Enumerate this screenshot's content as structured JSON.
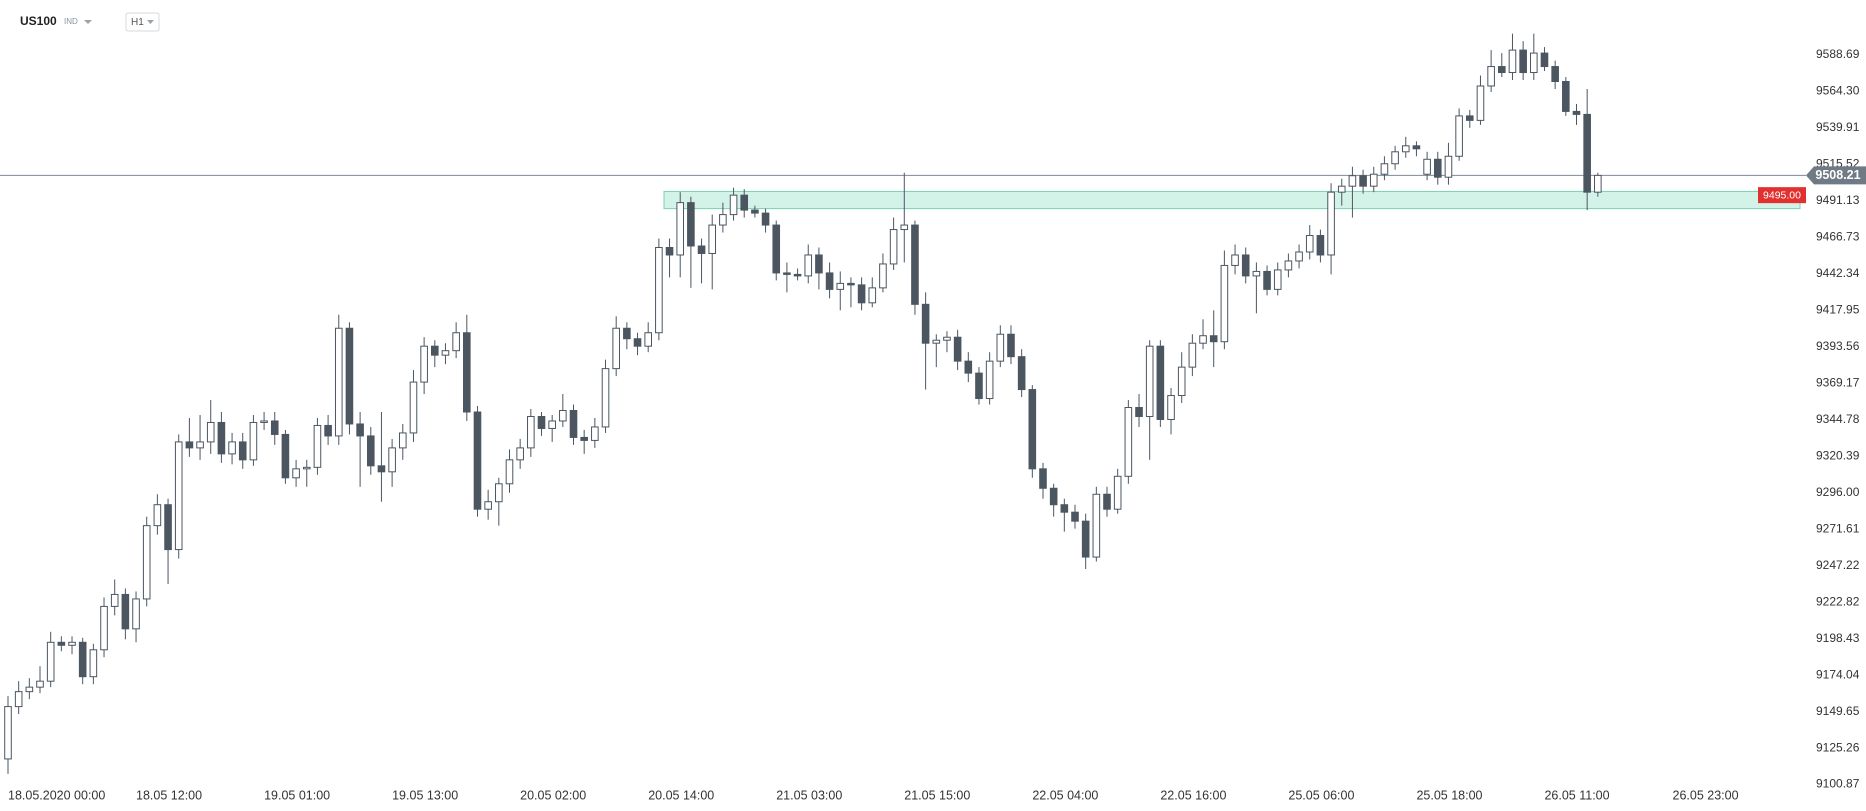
{
  "chart_data": {
    "type": "candlestick",
    "title": "US100",
    "subtitle": "IND",
    "timeframe": "H1",
    "up_color": "#ffffff",
    "down_color": "#4b5661",
    "outline_color": "#4b5661",
    "ylim": [
      9097.9,
      9625.5
    ],
    "yticks": [
      9100.87,
      9125.26,
      9149.65,
      9174.04,
      9198.43,
      9222.82,
      9247.22,
      9271.61,
      {
        "value": 9296,
        "label": "9296.00"
      },
      9320.39,
      9344.78,
      9369.17,
      9393.56,
      9417.95,
      9442.34,
      9466.73,
      9491.13,
      9515.52,
      9539.91,
      {
        "value": 9564.3,
        "label": "9564.30"
      },
      9588.69
    ],
    "current_price": 9508.21,
    "zone": {
      "low": 9486,
      "high": 9497.5
    },
    "zone_label": {
      "value": 9495,
      "label": "9495.00"
    },
    "categories": [
      "18.05.2020 00:00",
      null,
      null,
      null,
      null,
      null,
      null,
      null,
      null,
      null,
      null,
      null,
      "18.05 12:00",
      null,
      null,
      null,
      null,
      null,
      null,
      null,
      null,
      null,
      null,
      null,
      "19.05 01:00",
      null,
      null,
      null,
      null,
      null,
      null,
      null,
      null,
      null,
      null,
      null,
      "19.05 13:00",
      null,
      null,
      null,
      null,
      null,
      null,
      null,
      null,
      null,
      null,
      null,
      "20.05 02:00",
      null,
      null,
      null,
      null,
      null,
      null,
      null,
      null,
      null,
      null,
      null,
      "20.05 14:00",
      null,
      null,
      null,
      null,
      null,
      null,
      null,
      null,
      null,
      null,
      null,
      "21.05 03:00",
      null,
      null,
      null,
      null,
      null,
      null,
      null,
      null,
      null,
      null,
      null,
      "21.05 15:00",
      null,
      null,
      null,
      null,
      null,
      null,
      null,
      null,
      null,
      null,
      null,
      "22.05 04:00",
      null,
      null,
      null,
      null,
      null,
      null,
      null,
      null,
      null,
      null,
      null,
      "22.05 16:00",
      null,
      null,
      null,
      null,
      null,
      null,
      null,
      null,
      null,
      null,
      null,
      "25.05 06:00",
      null,
      null,
      null,
      null,
      null,
      null,
      null,
      null,
      null,
      null,
      null,
      "25.05 18:00",
      null,
      null,
      null,
      null,
      null,
      null,
      null,
      null,
      null,
      null,
      null,
      "26.05 11:00",
      null,
      null,
      null,
      null,
      null,
      null,
      null,
      null,
      null,
      null,
      null,
      "26.05 23:00"
    ],
    "ohlc": [
      [
        9118,
        9160,
        9108,
        9153
      ],
      [
        9153,
        9170,
        9148,
        9163
      ],
      [
        9163,
        9172,
        9158,
        9166
      ],
      [
        9166,
        9180,
        9162,
        9170
      ],
      [
        9170,
        9203,
        9166,
        9196
      ],
      [
        9196,
        9200,
        9190,
        9194
      ],
      [
        9194,
        9200,
        9188,
        9196
      ],
      [
        9196,
        9199,
        9168,
        9173
      ],
      [
        9173,
        9195,
        9168,
        9191
      ],
      [
        9191,
        9226,
        9186,
        9220
      ],
      [
        9220,
        9238,
        9214,
        9228
      ],
      [
        9228,
        9232,
        9198,
        9205
      ],
      [
        9205,
        9230,
        9196,
        9225
      ],
      [
        9225,
        9280,
        9220,
        9274
      ],
      [
        9274,
        9295,
        9268,
        9288
      ],
      [
        9288,
        9292,
        9235,
        9258
      ],
      [
        9258,
        9335,
        9252,
        9330
      ],
      [
        9330,
        9346,
        9320,
        9326
      ],
      [
        9326,
        9348,
        9318,
        9330
      ],
      [
        9330,
        9358,
        9322,
        9343
      ],
      [
        9343,
        9350,
        9316,
        9322
      ],
      [
        9322,
        9336,
        9315,
        9330
      ],
      [
        9330,
        9336,
        9312,
        9318
      ],
      [
        9318,
        9348,
        9314,
        9343
      ],
      [
        9343,
        9350,
        9338,
        9344
      ],
      [
        9344,
        9350,
        9328,
        9335
      ],
      [
        9335,
        9338,
        9302,
        9306
      ],
      [
        9306,
        9318,
        9300,
        9312
      ],
      [
        9312,
        9318,
        9300,
        9313
      ],
      [
        9313,
        9346,
        9308,
        9341
      ],
      [
        9341,
        9348,
        9328,
        9334
      ],
      [
        9334,
        9415,
        9328,
        9406
      ],
      [
        9406,
        9410,
        9335,
        9342
      ],
      [
        9342,
        9350,
        9300,
        9334
      ],
      [
        9334,
        9340,
        9308,
        9314
      ],
      [
        9314,
        9350,
        9290,
        9310
      ],
      [
        9310,
        9332,
        9300,
        9326
      ],
      [
        9326,
        9342,
        9318,
        9336
      ],
      [
        9336,
        9378,
        9330,
        9370
      ],
      [
        9370,
        9400,
        9362,
        9394
      ],
      [
        9394,
        9398,
        9380,
        9388
      ],
      [
        9388,
        9396,
        9382,
        9391
      ],
      [
        9391,
        9410,
        9386,
        9403
      ],
      [
        9403,
        9415,
        9344,
        9350
      ],
      [
        9350,
        9354,
        9280,
        9285
      ],
      [
        9285,
        9298,
        9278,
        9290
      ],
      [
        9290,
        9306,
        9274,
        9302
      ],
      [
        9302,
        9325,
        9296,
        9318
      ],
      [
        9318,
        9332,
        9312,
        9326
      ],
      [
        9326,
        9352,
        9320,
        9347
      ],
      [
        9347,
        9350,
        9334,
        9339
      ],
      [
        9339,
        9348,
        9330,
        9344
      ],
      [
        9344,
        9362,
        9340,
        9351
      ],
      [
        9351,
        9355,
        9328,
        9333
      ],
      [
        9333,
        9338,
        9322,
        9331
      ],
      [
        9331,
        9346,
        9326,
        9340
      ],
      [
        9340,
        9385,
        9336,
        9379
      ],
      [
        9379,
        9414,
        9374,
        9406
      ],
      [
        9406,
        9410,
        9392,
        9399
      ],
      [
        9399,
        9403,
        9388,
        9394
      ],
      [
        9394,
        9410,
        9390,
        9403
      ],
      [
        9403,
        9466,
        9398,
        9460
      ],
      [
        9460,
        9466,
        9440,
        9455
      ],
      [
        9455,
        9497,
        9440,
        9490
      ],
      [
        9490,
        9494,
        9433,
        9461
      ],
      [
        9461,
        9466,
        9436,
        9456
      ],
      [
        9456,
        9482,
        9432,
        9475
      ],
      [
        9475,
        9490,
        9470,
        9482
      ],
      [
        9482,
        9500,
        9478,
        9495
      ],
      [
        9495,
        9499,
        9480,
        9485
      ],
      [
        9485,
        9488,
        9480,
        9483
      ],
      [
        9483,
        9486,
        9470,
        9475
      ],
      [
        9475,
        9478,
        9438,
        9443
      ],
      [
        9443,
        9450,
        9430,
        9442
      ],
      [
        9442,
        9446,
        9438,
        9441
      ],
      [
        9441,
        9462,
        9436,
        9455
      ],
      [
        9455,
        9460,
        9432,
        9443
      ],
      [
        9443,
        9450,
        9426,
        9432
      ],
      [
        9432,
        9444,
        9418,
        9436
      ],
      [
        9436,
        9440,
        9420,
        9435
      ],
      [
        9435,
        9440,
        9418,
        9423
      ],
      [
        9423,
        9440,
        9420,
        9433
      ],
      [
        9433,
        9456,
        9430,
        9449
      ],
      [
        9449,
        9480,
        9445,
        9472
      ],
      [
        9472,
        9510,
        9450,
        9475
      ],
      [
        9475,
        9478,
        9415,
        9422
      ],
      [
        9422,
        9430,
        9365,
        9396
      ],
      [
        9396,
        9402,
        9380,
        9398
      ],
      [
        9398,
        9404,
        9390,
        9400
      ],
      [
        9400,
        9405,
        9378,
        9384
      ],
      [
        9384,
        9390,
        9370,
        9376
      ],
      [
        9376,
        9380,
        9355,
        9359
      ],
      [
        9359,
        9390,
        9355,
        9384
      ],
      [
        9384,
        9408,
        9380,
        9402
      ],
      [
        9402,
        9408,
        9382,
        9387
      ],
      [
        9387,
        9392,
        9360,
        9365
      ],
      [
        9365,
        9368,
        9306,
        9312
      ],
      [
        9312,
        9316,
        9292,
        9299
      ],
      [
        9299,
        9302,
        9280,
        9288
      ],
      [
        9288,
        9292,
        9270,
        9283
      ],
      [
        9283,
        9288,
        9272,
        9277
      ],
      [
        9277,
        9282,
        9245,
        9253
      ],
      [
        9253,
        9300,
        9250,
        9295
      ],
      [
        9295,
        9300,
        9280,
        9285
      ],
      [
        9285,
        9312,
        9282,
        9307
      ],
      [
        9307,
        9358,
        9302,
        9353
      ],
      [
        9353,
        9362,
        9340,
        9347
      ],
      [
        9347,
        9398,
        9318,
        9394
      ],
      [
        9394,
        9398,
        9340,
        9345
      ],
      [
        9345,
        9366,
        9335,
        9361
      ],
      [
        9361,
        9390,
        9356,
        9380
      ],
      [
        9380,
        9402,
        9374,
        9396
      ],
      [
        9396,
        9412,
        9392,
        9401
      ],
      [
        9401,
        9418,
        9380,
        9397
      ],
      [
        9397,
        9458,
        9392,
        9448
      ],
      [
        9448,
        9462,
        9442,
        9455
      ],
      [
        9455,
        9460,
        9436,
        9441
      ],
      [
        9441,
        9450,
        9416,
        9444
      ],
      [
        9444,
        9448,
        9428,
        9432
      ],
      [
        9432,
        9450,
        9428,
        9445
      ],
      [
        9445,
        9456,
        9440,
        9451
      ],
      [
        9451,
        9462,
        9446,
        9457
      ],
      [
        9457,
        9475,
        9452,
        9468
      ],
      [
        9468,
        9472,
        9450,
        9455
      ],
      [
        9455,
        9503,
        9442,
        9497
      ],
      [
        9497,
        9506,
        9488,
        9501
      ],
      [
        9501,
        9514,
        9480,
        9508
      ],
      [
        9508,
        9512,
        9496,
        9501
      ],
      [
        9501,
        9514,
        9497,
        9509
      ],
      [
        9509,
        9521,
        9505,
        9516
      ],
      [
        9516,
        9528,
        9512,
        9524
      ],
      [
        9524,
        9534,
        9520,
        9528
      ],
      [
        9528,
        9531,
        9521,
        9526
      ],
      [
        9509,
        9524,
        9505,
        9519
      ],
      [
        9519,
        9524,
        9502,
        9507
      ],
      [
        9507,
        9530,
        9502,
        9521
      ],
      [
        9521,
        9553,
        9518,
        9548
      ],
      [
        9548,
        9552,
        9540,
        9545
      ],
      [
        9545,
        9575,
        9542,
        9568
      ],
      [
        9568,
        9592,
        9564,
        9581
      ],
      [
        9581,
        9590,
        9574,
        9577
      ],
      [
        9577,
        9603,
        9572,
        9592
      ],
      [
        9592,
        9598,
        9572,
        9577
      ],
      [
        9577,
        9603,
        9572,
        9590
      ],
      [
        9590,
        9594,
        9578,
        9581
      ],
      [
        9581,
        9585,
        9566,
        9571
      ],
      [
        9571,
        9574,
        9548,
        9551
      ],
      [
        9551,
        9556,
        9542,
        9549
      ],
      [
        9549,
        9566,
        9485,
        9497
      ],
      [
        9497,
        9510,
        9494,
        9508.21
      ],
      null,
      null,
      null,
      null,
      null,
      null,
      null
    ]
  }
}
